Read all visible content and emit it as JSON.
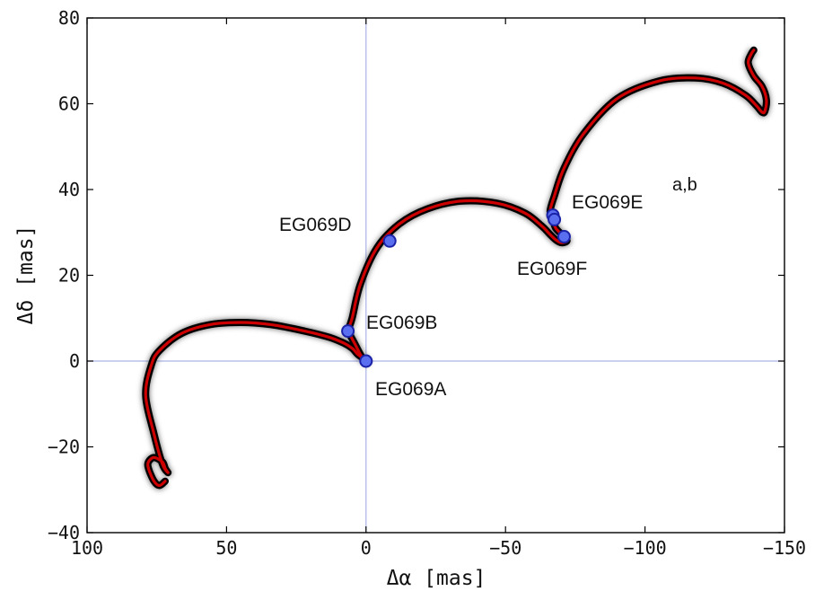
{
  "chart_data": {
    "type": "line",
    "title": "",
    "xlabel": "Δα [mas]",
    "ylabel": "Δδ [mas]",
    "xlim": [
      100,
      -150
    ],
    "ylim": [
      -40,
      80
    ],
    "x_inverted": true,
    "grid": false,
    "zero_lines": true,
    "xticks": [
      100,
      50,
      0,
      -50,
      -100,
      -150
    ],
    "yticks": [
      -40,
      -20,
      0,
      20,
      40,
      60,
      80
    ],
    "xtick_labels": [
      "100",
      "50",
      "0",
      "−50",
      "−100",
      "−150"
    ],
    "ytick_labels": [
      "−40",
      "−20",
      "0",
      "20",
      "40",
      "60",
      "80"
    ],
    "colors": {
      "model_track": "#cc0000",
      "track_outline": "#000000",
      "posterior_samples": "#555555",
      "epoch_marker": "#5a6ef0",
      "zero_line": "#aab4e8"
    },
    "series": [
      {
        "role": "model-track",
        "x": [
          72,
          74,
          76,
          78,
          78,
          76,
          73,
          72,
          71,
          73,
          76,
          79,
          77,
          74,
          66,
          56,
          45,
          34,
          22,
          13,
          8,
          5,
          3,
          1,
          0,
          1,
          2,
          4,
          6,
          6.5,
          5,
          2,
          -4,
          -12,
          -22,
          -34,
          -47,
          -57,
          -63,
          -66,
          -68,
          -70,
          -72,
          -71,
          -68,
          -67,
          -66,
          -67.5,
          -71,
          -78,
          -90,
          -105,
          -118,
          -128,
          -136,
          -140,
          -142,
          -143,
          -143.5,
          -142,
          -139,
          -137,
          -138,
          -139
        ],
        "y": [
          -28,
          -29,
          -28,
          -25,
          -23.5,
          -22.5,
          -23.5,
          -25,
          -26,
          -24,
          -17,
          -8,
          -1,
          2.5,
          6.5,
          8.5,
          9,
          8.5,
          7,
          5.5,
          4.2,
          3,
          1.6,
          0.6,
          0,
          0.5,
          1.5,
          4,
          6.4,
          7,
          10,
          18,
          26.5,
          32,
          35.5,
          37.3,
          36.8,
          34.5,
          31.5,
          29.5,
          28.3,
          27.6,
          28,
          29,
          31,
          33,
          35,
          38.5,
          45,
          53,
          61.2,
          65.3,
          66,
          64.8,
          62,
          59.5,
          58,
          58.3,
          61,
          64,
          66.5,
          69.5,
          71.5,
          72.5
        ]
      }
    ],
    "points": [
      {
        "name": "EG069A",
        "x": 0,
        "y": 0
      },
      {
        "name": "EG069B",
        "x": 6.5,
        "y": 7
      },
      {
        "name": "EG069D",
        "x": -8.5,
        "y": 28
      },
      {
        "name": "EG069E",
        "x": -67,
        "y": 34
      },
      {
        "name": "EG069E",
        "x": -67.5,
        "y": 33
      },
      {
        "name": "EG069F",
        "x": -71,
        "y": 29
      }
    ],
    "annotations": [
      {
        "key": "A",
        "text": "EG069A",
        "sup": ""
      },
      {
        "key": "B",
        "text": "EG069B",
        "sup": ""
      },
      {
        "key": "D",
        "text": "EG069D",
        "sup": ""
      },
      {
        "key": "E",
        "text": "EG069E",
        "sup": "a,b"
      },
      {
        "key": "F",
        "text": "EG069F",
        "sup": ""
      }
    ]
  }
}
